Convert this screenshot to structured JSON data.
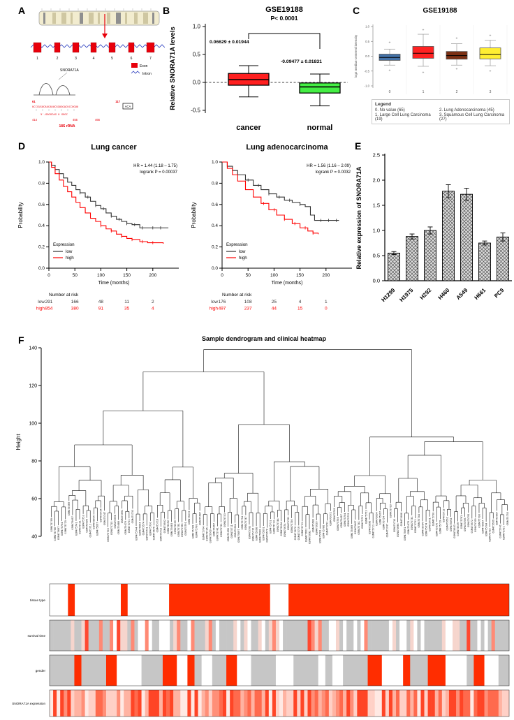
{
  "panels": {
    "a": "A",
    "b": "B",
    "c": "C",
    "d": "D",
    "e": "E",
    "f": "F"
  },
  "panelA": {
    "gene_name": "SNORA71A",
    "legend_exon": "Exon",
    "legend_intron": "Intron",
    "exon_numbers": [
      "1",
      "2",
      "3",
      "4",
      "5",
      "6",
      "7"
    ],
    "coord_start": "61",
    "coord_end": "117",
    "seq_top": "UCCCUGUCAUCAUUCGGUGGACUCCUGUU",
    "aca_label": "ACA",
    "seq_bottom": "5'-GGGGCAG U GGGC",
    "seq_positions": [
      "414",
      "455",
      "466"
    ],
    "rrna_label": "18S rRNA"
  },
  "chart_data": [
    {
      "id": "B",
      "type": "box",
      "title": "GSE19188",
      "pvalue_text": "P< 0.0001",
      "ylabel": "Relative SNORA71A levels",
      "ylim": [
        -0.5,
        1.0
      ],
      "yticks": [
        -0.5,
        0.0,
        0.5,
        1.0
      ],
      "ref_line": 0.0,
      "categories": [
        "cancer",
        "normal"
      ],
      "annotations": [
        "0.06629 ± 0.01944",
        "-0.09477 ± 0.01831"
      ],
      "boxes": [
        {
          "label": "cancer",
          "color": "#ff1f1f",
          "low": -0.26,
          "q1": -0.05,
          "median": 0.05,
          "q3": 0.16,
          "high": 0.3
        },
        {
          "label": "normal",
          "color": "#44ee44",
          "low": -0.42,
          "q1": -0.19,
          "median": -0.08,
          "q3": -0.01,
          "high": 0.15
        }
      ]
    },
    {
      "id": "C",
      "type": "box",
      "title": "GSE19188",
      "ylabel": "log2 median-centered intensity",
      "ylim": [
        -1.0,
        1.0
      ],
      "yticks": [
        -1.0,
        -0.5,
        0.0,
        0.5,
        1.0
      ],
      "categories": [
        "0",
        "1",
        "2",
        "3"
      ],
      "boxes": [
        {
          "label": "0",
          "color": "#4472a8",
          "low": -0.3,
          "q1": -0.14,
          "median": -0.04,
          "q3": 0.07,
          "high": 0.24,
          "outliers": [
            0.46,
            -0.48
          ]
        },
        {
          "label": "1",
          "color": "#ff2222",
          "low": -0.34,
          "q1": -0.07,
          "median": 0.1,
          "q3": 0.33,
          "high": 0.74,
          "outliers": [
            -0.55,
            0.88
          ]
        },
        {
          "label": "2",
          "color": "#7b3014",
          "low": -0.3,
          "q1": -0.1,
          "median": 0.02,
          "q3": 0.16,
          "high": 0.42,
          "outliers": [
            0.6,
            -0.44
          ]
        },
        {
          "label": "3",
          "color": "#ffee33",
          "low": -0.32,
          "q1": -0.09,
          "median": 0.06,
          "q3": 0.28,
          "high": 0.54,
          "outliers": [
            -0.5,
            0.7
          ]
        }
      ],
      "legend_title": "Legend",
      "legend": [
        "0. No value (65)",
        "1. Large Cell Lung Carcinoma (19)",
        "2. Lung Adenocarcinoma (45)",
        "3. Squamous Cell Lung Carcinoma (27)"
      ]
    },
    {
      "id": "D1",
      "type": "line",
      "title": "Lung cancer",
      "hr_text": "HR = 1.44 (1.18 – 1.75)",
      "logrank_text": "logrank P = 0.00037",
      "xlabel": "Time (months)",
      "ylabel": "Probability",
      "xlim": [
        0,
        250
      ],
      "ylim": [
        0.0,
        1.0
      ],
      "xticks": [
        0,
        50,
        100,
        150,
        200
      ],
      "yticks": [
        0.0,
        0.2,
        0.4,
        0.6,
        0.8,
        1.0
      ],
      "legend_title": "Expression",
      "series": [
        {
          "name": "low",
          "color": "#333333",
          "x": [
            0,
            5,
            12,
            20,
            28,
            36,
            44,
            52,
            60,
            70,
            80,
            90,
            100,
            110,
            120,
            130,
            140,
            150,
            160,
            175,
            190,
            210,
            230
          ],
          "y": [
            1.0,
            0.97,
            0.93,
            0.89,
            0.85,
            0.81,
            0.78,
            0.74,
            0.71,
            0.67,
            0.63,
            0.59,
            0.56,
            0.52,
            0.49,
            0.46,
            0.44,
            0.42,
            0.41,
            0.38,
            0.38,
            0.38,
            0.38
          ],
          "censors": [
            60,
            75,
            90,
            105,
            120,
            135,
            150,
            165,
            180,
            200,
            215
          ]
        },
        {
          "name": "high",
          "color": "#ff0000",
          "x": [
            0,
            5,
            12,
            20,
            28,
            36,
            44,
            52,
            60,
            70,
            80,
            90,
            100,
            110,
            120,
            130,
            140,
            150,
            160,
            175,
            190,
            205,
            220
          ],
          "y": [
            1.0,
            0.95,
            0.89,
            0.83,
            0.77,
            0.72,
            0.67,
            0.62,
            0.57,
            0.52,
            0.47,
            0.44,
            0.4,
            0.37,
            0.35,
            0.32,
            0.3,
            0.28,
            0.27,
            0.25,
            0.24,
            0.24,
            0.23
          ],
          "censors": [
            100,
            120,
            140,
            160,
            180,
            200
          ]
        }
      ],
      "risk_table": {
        "title": "Number at risk",
        "rows": [
          {
            "name": "low",
            "color": "#333333",
            "values": [
              291,
              166,
              48,
              11,
              2
            ]
          },
          {
            "name": "high",
            "color": "#ff0000",
            "values": [
              854,
              380,
              91,
              35,
              4
            ]
          }
        ]
      }
    },
    {
      "id": "D2",
      "type": "line",
      "title": "Lung adenocarcinoma",
      "hr_text": "HR = 1.56 (1.16 – 2.09)",
      "logrank_text": "logrank P = 0.0032",
      "xlabel": "Time (months)",
      "ylabel": "Probability",
      "xlim": [
        0,
        250
      ],
      "ylim": [
        0.0,
        1.0
      ],
      "xticks": [
        0,
        50,
        100,
        150,
        200
      ],
      "yticks": [
        0.0,
        0.2,
        0.4,
        0.6,
        0.8,
        1.0
      ],
      "legend_title": "Expression",
      "series": [
        {
          "name": "low",
          "color": "#333333",
          "x": [
            0,
            10,
            20,
            30,
            45,
            60,
            75,
            90,
            105,
            120,
            135,
            150,
            160,
            170,
            178,
            190,
            205,
            225
          ],
          "y": [
            1.0,
            0.96,
            0.92,
            0.88,
            0.83,
            0.78,
            0.74,
            0.7,
            0.67,
            0.64,
            0.62,
            0.6,
            0.58,
            0.5,
            0.45,
            0.45,
            0.45,
            0.45
          ],
          "censors": [
            50,
            70,
            90,
            110,
            130,
            150,
            190,
            205,
            220
          ]
        },
        {
          "name": "high",
          "color": "#ff0000",
          "x": [
            0,
            10,
            20,
            30,
            45,
            60,
            75,
            90,
            105,
            120,
            135,
            150,
            165,
            175,
            185
          ],
          "y": [
            1.0,
            0.94,
            0.88,
            0.82,
            0.74,
            0.67,
            0.61,
            0.55,
            0.5,
            0.46,
            0.42,
            0.38,
            0.35,
            0.33,
            0.32
          ],
          "censors": [
            80,
            100,
            120,
            140,
            160,
            175
          ]
        }
      ],
      "risk_table": {
        "title": "Number at risk",
        "rows": [
          {
            "name": "low",
            "color": "#333333",
            "values": [
              176,
              108,
              25,
              4,
              1
            ]
          },
          {
            "name": "high",
            "color": "#ff0000",
            "values": [
              497,
              237,
              44,
              15,
              0
            ]
          }
        ]
      }
    },
    {
      "id": "E",
      "type": "bar",
      "ylabel": "Relative expression of SNORA71A",
      "categories": [
        "H1299",
        "H1975",
        "H292",
        "H460",
        "A549",
        "H661",
        "PC9"
      ],
      "values": [
        0.55,
        0.88,
        1.0,
        1.78,
        1.72,
        0.75,
        0.87
      ],
      "errors": [
        0.03,
        0.05,
        0.07,
        0.13,
        0.12,
        0.04,
        0.08
      ],
      "ylim": [
        0,
        2.5
      ],
      "yticks": [
        0.0,
        0.5,
        1.0,
        1.5,
        2.0,
        2.5
      ],
      "bar_fill": "#dcdcdc",
      "hatch_color": "#555555"
    },
    {
      "id": "F",
      "type": "dendrogram-heatmap",
      "title": "Sample dendrogram and clinical heatmap",
      "ylabel": "Height",
      "ylim": [
        40,
        140
      ],
      "yticks": [
        40,
        60,
        80,
        100,
        120,
        140
      ],
      "leaf_count": 130,
      "samples": [
        "GSM475709",
        "GSM475708",
        "GSM475687",
        "GSM475704",
        "GSM475725",
        "GSM475669",
        "GSM475667",
        "GSM475741",
        "GSM475721",
        "GSM475753",
        "GSM475696",
        "GSM475711",
        "GSM475664",
        "GSM475697",
        "GSM475754",
        "GSM475747",
        "GSM475703",
        "GSM475715",
        "GSM475698",
        "GSM475688",
        "GSM475691",
        "GSM475679",
        "GSM475731",
        "GSM475733",
        "GSM475744",
        "GSM475694",
        "GSM475674",
        "GSM475701",
        "GSM475730",
        "GSM475676",
        "GSM475719",
        "GSM475713",
        "GSM475662",
        "GSM475692",
        "GSM475683",
        "GSM475659",
        "GSM475781",
        "GSM475786",
        "GSM475791",
        "GSM475672"
      ],
      "heatmap_rows": [
        {
          "label": "tissue type",
          "height": 46,
          "type": "segments",
          "segments": [
            [
              "#ffffff",
              0.04
            ],
            [
              "#ff2d00",
              0.015
            ],
            [
              "#ffffff",
              0.1
            ],
            [
              "#ff2d00",
              0.015
            ],
            [
              "#ffffff",
              0.09
            ],
            [
              "#ff2d00",
              0.22
            ],
            [
              "#ffffff",
              0.04
            ],
            [
              "#ff2d00",
              0.48
            ]
          ]
        },
        {
          "label": "survival time",
          "height": 44,
          "type": "random",
          "colors": [
            "#c6c6c6",
            "#ffffff",
            "#f6d5cd",
            "#ff8a75",
            "#ff4830"
          ],
          "weights": [
            0.55,
            0.16,
            0.16,
            0.09,
            0.04
          ]
        },
        {
          "label": "gender",
          "height": 44,
          "type": "blocks",
          "colors": [
            "#ff2d00",
            "#ffffff",
            "#c6c6c6"
          ]
        },
        {
          "label": "SNORA71A expression",
          "height": 38,
          "type": "shades",
          "colors": [
            "#ffe9e4",
            "#ffd0c6",
            "#ffb3a2",
            "#ff8f78",
            "#ff6a4d",
            "#ff4526"
          ]
        }
      ]
    }
  ]
}
